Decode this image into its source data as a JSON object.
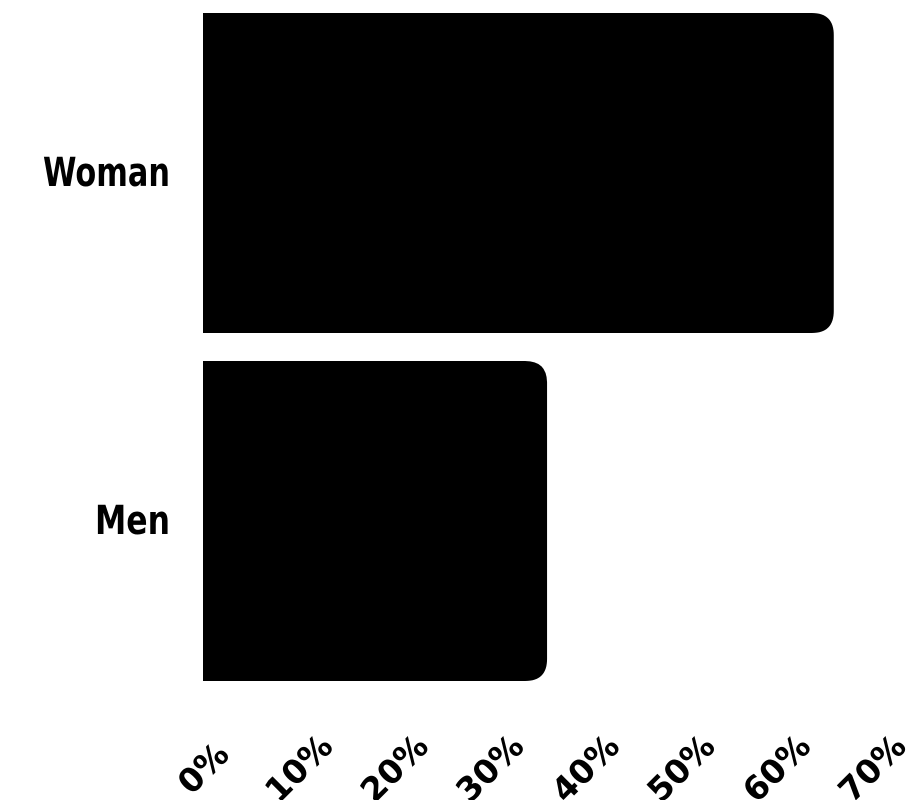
{
  "chart_data": {
    "type": "bar",
    "orientation": "horizontal",
    "categories": [
      "Woman",
      "Men"
    ],
    "values": [
      66,
      36
    ],
    "xlim": [
      0,
      70
    ],
    "x_ticks": [
      0,
      10,
      20,
      30,
      40,
      50,
      60,
      70
    ],
    "x_tick_labels": [
      "0%",
      "10%",
      "20%",
      "30%",
      "40%",
      "50%",
      "60%",
      "70%"
    ],
    "title": "",
    "xlabel": "",
    "ylabel": "",
    "grid": false,
    "legend": "none",
    "colors": {
      "bar": "#000000",
      "text": "#000000",
      "background": "#ffffff"
    }
  }
}
